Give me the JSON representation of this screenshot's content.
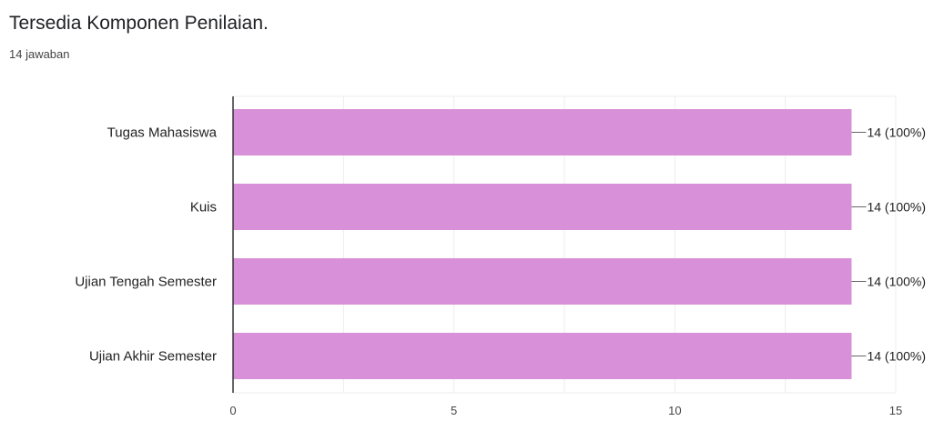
{
  "header": {
    "title": "Tersedia Komponen Penilaian.",
    "responses": "14 jawaban"
  },
  "colors": {
    "bar": "#d890d9",
    "axis": "#333333",
    "grid": "#ececec",
    "leader": "#666666"
  },
  "chart_data": {
    "type": "bar",
    "orientation": "horizontal",
    "categories": [
      "Tugas Mahasiswa",
      "Kuis",
      "Ujian Tengah Semester",
      "Ujian Akhir Semester"
    ],
    "values": [
      14,
      14,
      14,
      14
    ],
    "data_labels": [
      "14 (100%)",
      "14 (100%)",
      "14 (100%)",
      "14 (100%)"
    ],
    "xlim": [
      0,
      15
    ],
    "x_ticks": [
      0,
      5,
      10,
      15
    ],
    "grid": true
  }
}
